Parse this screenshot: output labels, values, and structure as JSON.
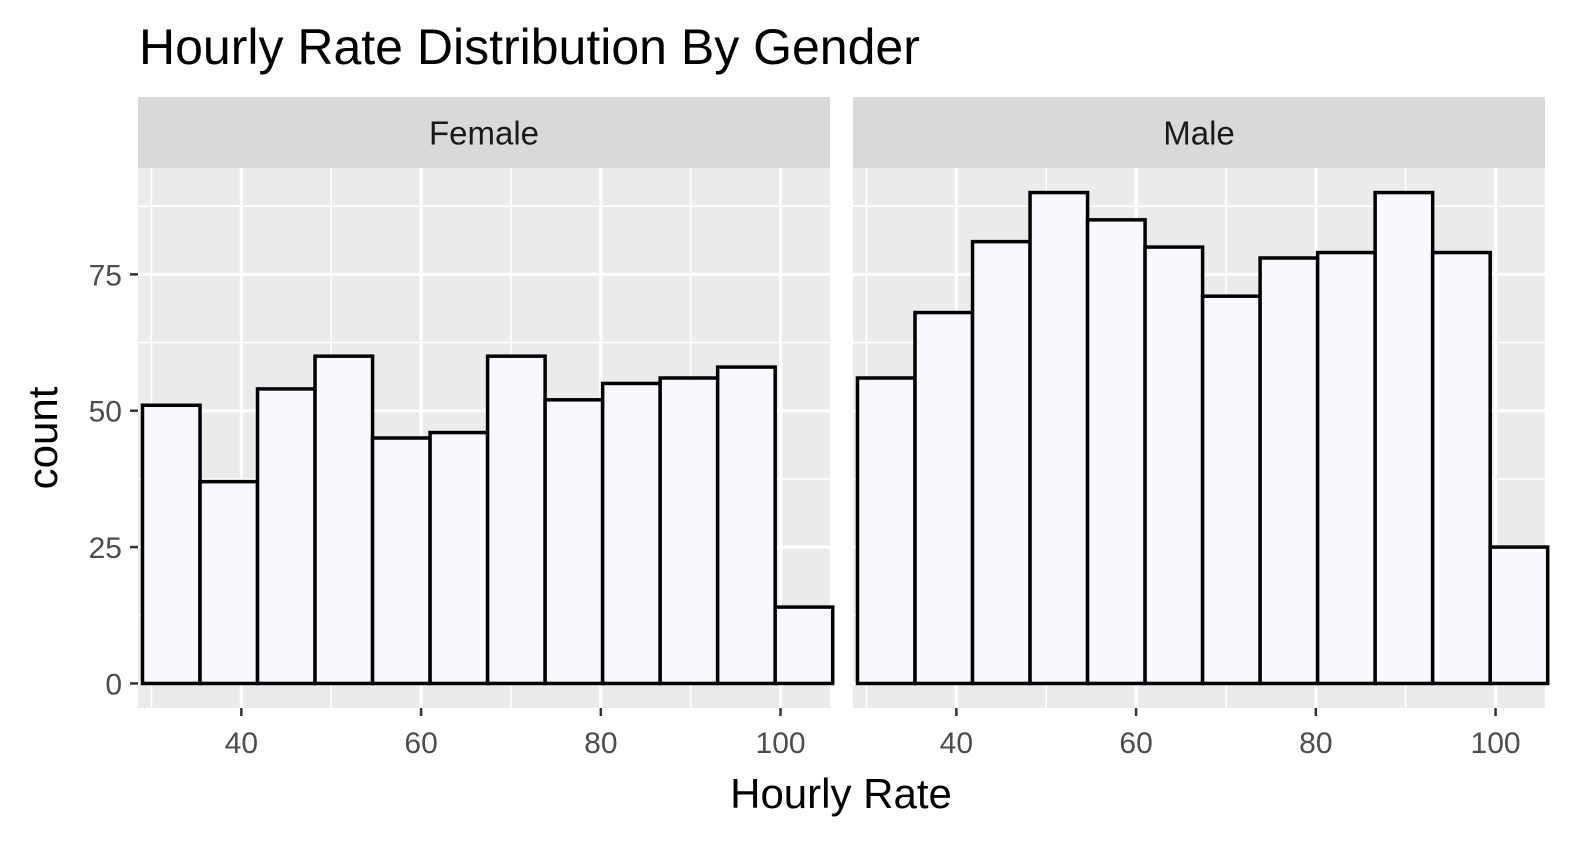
{
  "chart_data": {
    "type": "bar",
    "title": "Hourly Rate Distribution By Gender",
    "xlabel": "Hourly Rate",
    "ylabel": "count",
    "xlim": [
      28.5,
      105.5
    ],
    "ylim": [
      -4.5,
      94.5
    ],
    "x_ticks": [
      40,
      60,
      80,
      100
    ],
    "y_ticks": [
      0,
      25,
      50,
      75
    ],
    "grid": true,
    "legend": "none",
    "bar_fill": "#f8f8ff",
    "bar_outline": "#000000",
    "panel_background": "#ebebeb",
    "strip_background": "#d9d9d9",
    "bins": [
      [
        29.0,
        35.4
      ],
      [
        35.4,
        41.8
      ],
      [
        41.8,
        48.2
      ],
      [
        48.2,
        54.6
      ],
      [
        54.6,
        61.0
      ],
      [
        61.0,
        67.4
      ],
      [
        67.4,
        73.8
      ],
      [
        73.8,
        80.2
      ],
      [
        80.2,
        86.6
      ],
      [
        86.6,
        93.0
      ],
      [
        93.0,
        99.4
      ],
      [
        99.4,
        105.8
      ]
    ],
    "panels": [
      {
        "name": "Female",
        "values": [
          51,
          37,
          54,
          60,
          45,
          46,
          60,
          52,
          55,
          56,
          58,
          14
        ]
      },
      {
        "name": "Male",
        "values": [
          56,
          68,
          81,
          90,
          85,
          80,
          71,
          78,
          79,
          90,
          79,
          25
        ]
      }
    ]
  }
}
